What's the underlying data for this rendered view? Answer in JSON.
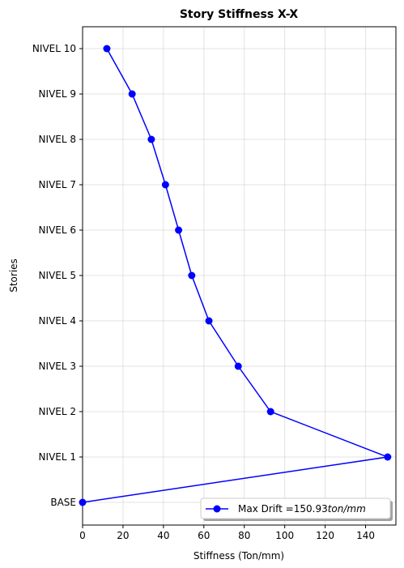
{
  "chart_data": {
    "type": "line",
    "title": "Story Stiffness X-X",
    "xlabel": "Stiffness (Ton/mm)",
    "ylabel": "Stories",
    "xlim": [
      0,
      155
    ],
    "xticks": [
      0,
      20,
      40,
      60,
      80,
      100,
      120,
      140
    ],
    "categories": [
      "BASE",
      "NIVEL 1",
      "NIVEL 2",
      "NIVEL 3",
      "NIVEL 4",
      "NIVEL 5",
      "NIVEL 6",
      "NIVEL 7",
      "NIVEL 8",
      "NIVEL 9",
      "NIVEL 10"
    ],
    "grid": true,
    "legend_position": "lower-right",
    "series": [
      {
        "name": "Max Drift =150.93",
        "name_unit": "ton/mm",
        "color": "#0000ff",
        "x": [
          0,
          150.93,
          93,
          77,
          62.5,
          54,
          47.5,
          41,
          34,
          24.5,
          12
        ],
        "y": [
          "BASE",
          "NIVEL 1",
          "NIVEL 2",
          "NIVEL 3",
          "NIVEL 4",
          "NIVEL 5",
          "NIVEL 6",
          "NIVEL 7",
          "NIVEL 8",
          "NIVEL 9",
          "NIVEL 10"
        ]
      }
    ]
  }
}
